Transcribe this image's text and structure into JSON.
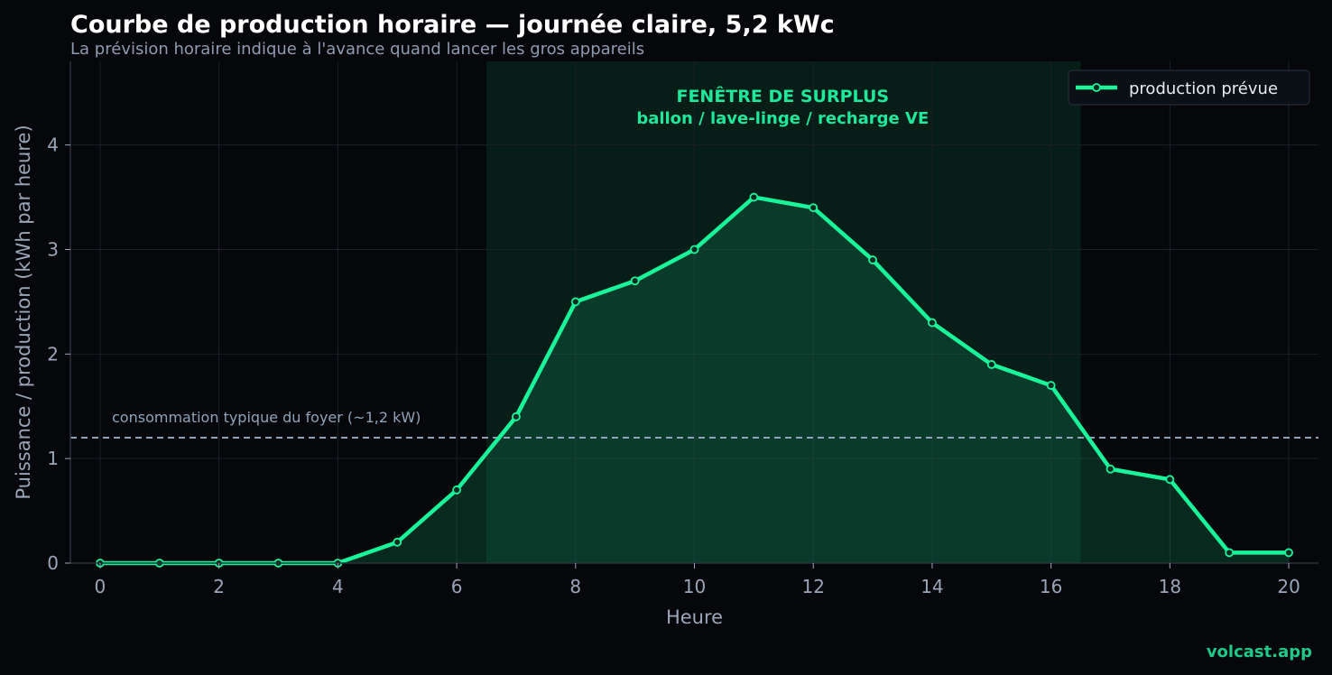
{
  "header": {
    "title": "Courbe de production horaire — journée claire, 5,2 kWc",
    "subtitle": "La prévision horaire indique à l'avance quand lancer les gros appareils"
  },
  "brand": "volcast.app",
  "colors": {
    "background": "#05070a",
    "series": "#19f59a",
    "window_fill": "#0a3a2a",
    "annotation": "#1ee89a",
    "reference": "#8fa3b8",
    "tick": "#9aa6b8",
    "grid": "#1a2028"
  },
  "chart_data": {
    "type": "line",
    "xlabel": "Heure",
    "ylabel": "Puissance / production (kWh par heure)",
    "xlim": [
      -0.5,
      20.5
    ],
    "ylim": [
      0,
      4.8
    ],
    "xticks": [
      0,
      2,
      4,
      6,
      8,
      10,
      12,
      14,
      16,
      18,
      20
    ],
    "yticks": [
      0,
      1,
      2,
      3,
      4
    ],
    "grid": true,
    "legend": {
      "placement": "top-right",
      "entries": [
        "production prévue"
      ]
    },
    "series": [
      {
        "name": "production prévue",
        "x": [
          0,
          1,
          2,
          3,
          4,
          5,
          6,
          7,
          8,
          9,
          10,
          11,
          12,
          13,
          14,
          15,
          16,
          17,
          18,
          19,
          20
        ],
        "y": [
          0,
          0,
          0,
          0,
          0,
          0.2,
          0.7,
          1.4,
          2.5,
          2.7,
          3.0,
          3.5,
          3.4,
          2.9,
          2.3,
          1.9,
          1.7,
          0.9,
          0.8,
          0.1,
          0.1
        ],
        "fill_to_zero": true
      }
    ],
    "reference_line": {
      "y": 1.2,
      "label": "consommation typique du foyer (~1,2 kW)"
    },
    "surplus_window": {
      "x_start": 6.5,
      "x_end": 16.5,
      "label_line1": "FENÊTRE DE SURPLUS",
      "label_line2": "ballon / lave-linge / recharge VE"
    }
  }
}
